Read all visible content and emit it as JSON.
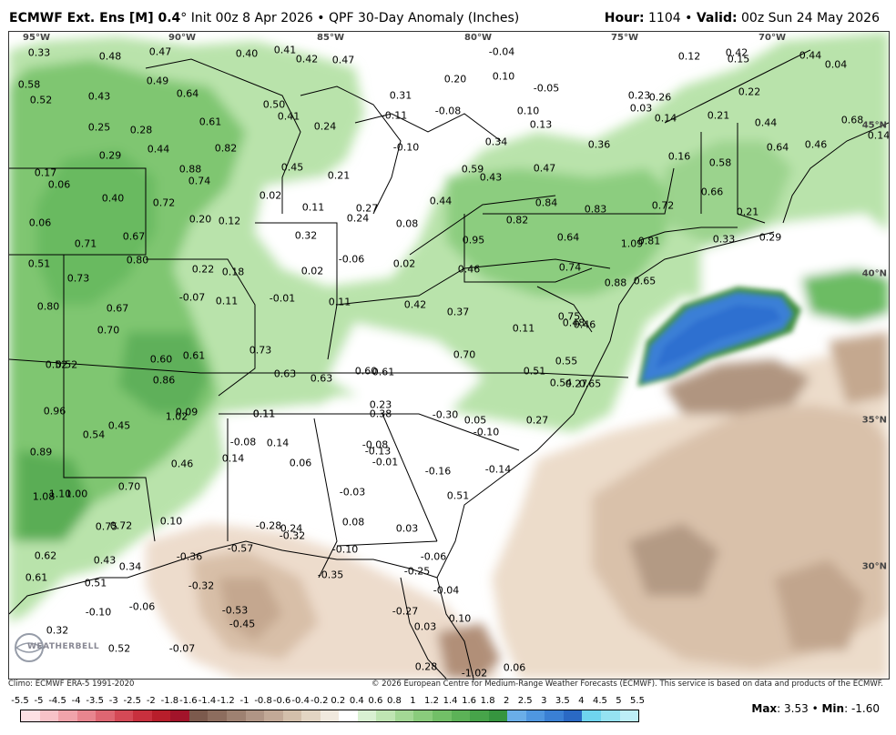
{
  "title": {
    "model": "ECMWF Ext. Ens [M] 0.4",
    "degree": "°",
    "init": "Init 00z 8 Apr 2026",
    "product": "QPF 30-Day Anomaly (Inches)",
    "hour_label": "Hour:",
    "hour": "1104",
    "valid_label": "Valid:",
    "valid": "00z Sun 24 May 2026"
  },
  "longitudes": [
    "95°W",
    "90°W",
    "85°W",
    "80°W",
    "75°W",
    "70°W"
  ],
  "latitudes": [
    "45°N",
    "40°N",
    "35°N",
    "30°N"
  ],
  "anomaly_labels": [
    {
      "text": "0.33"
    },
    {
      "text": "0.48"
    },
    {
      "text": "0.47"
    },
    {
      "text": "0.40"
    },
    {
      "text": "0.41"
    },
    {
      "text": "0.42"
    },
    {
      "text": "0.47"
    },
    {
      "text": "-0.04"
    },
    {
      "text": "0.42"
    },
    {
      "text": "0.44"
    },
    {
      "text": "0.58"
    },
    {
      "text": "0.49"
    },
    {
      "text": "0.10"
    },
    {
      "text": "0.20"
    },
    {
      "text": "0.12"
    },
    {
      "text": "0.15"
    },
    {
      "text": "0.04"
    },
    {
      "text": "0.52"
    },
    {
      "text": "0.43"
    },
    {
      "text": "0.64"
    },
    {
      "text": "-0.05"
    },
    {
      "text": "0.22"
    },
    {
      "text": "0.31"
    },
    {
      "text": "0.23"
    },
    {
      "text": "0.26"
    },
    {
      "text": "0.50"
    },
    {
      "text": "0.41"
    },
    {
      "text": "-0.11"
    },
    {
      "text": "-0.08"
    },
    {
      "text": "0.10"
    },
    {
      "text": "0.03"
    },
    {
      "text": "0.14"
    },
    {
      "text": "0.21"
    },
    {
      "text": "0.68"
    },
    {
      "text": "0.25"
    },
    {
      "text": "0.28"
    },
    {
      "text": "0.61"
    },
    {
      "text": "0.24"
    },
    {
      "text": "0.13"
    },
    {
      "text": "0.44"
    },
    {
      "text": "0.14"
    },
    {
      "text": "0.34"
    },
    {
      "text": "0.36"
    },
    {
      "text": "0.29"
    },
    {
      "text": "0.44"
    },
    {
      "text": "0.82"
    },
    {
      "text": "-0.10"
    },
    {
      "text": "0.64"
    },
    {
      "text": "0.46"
    },
    {
      "text": "0.16"
    },
    {
      "text": "0.58"
    },
    {
      "text": "0.45"
    },
    {
      "text": "0.88"
    },
    {
      "text": "0.47"
    },
    {
      "text": "0.59"
    },
    {
      "text": "0.17"
    },
    {
      "text": "0.21"
    },
    {
      "text": "0.43"
    },
    {
      "text": "0.06"
    },
    {
      "text": "0.74"
    },
    {
      "text": "0.66"
    },
    {
      "text": "0.02"
    },
    {
      "text": "0.40"
    },
    {
      "text": "0.72"
    },
    {
      "text": "0.84"
    },
    {
      "text": "0.72"
    },
    {
      "text": "0.11"
    },
    {
      "text": "0.27"
    },
    {
      "text": "0.44"
    },
    {
      "text": "0.83"
    },
    {
      "text": "0.21"
    },
    {
      "text": "0.20"
    },
    {
      "text": "0.12"
    },
    {
      "text": "0.24"
    },
    {
      "text": "0.08"
    },
    {
      "text": "0.06"
    },
    {
      "text": "0.82"
    },
    {
      "text": "0.67"
    },
    {
      "text": "0.32"
    },
    {
      "text": "0.95"
    },
    {
      "text": "0.64"
    },
    {
      "text": "1.09"
    },
    {
      "text": "0.81"
    },
    {
      "text": "0.33"
    },
    {
      "text": "0.29"
    },
    {
      "text": "0.71"
    },
    {
      "text": "0.51"
    },
    {
      "text": "0.80"
    },
    {
      "text": "-0.06"
    },
    {
      "text": "0.02"
    },
    {
      "text": "0.22"
    },
    {
      "text": "0.18"
    },
    {
      "text": "0.02"
    },
    {
      "text": "0.46"
    },
    {
      "text": "0.74"
    },
    {
      "text": "0.73"
    },
    {
      "text": "0.88"
    },
    {
      "text": "0.65"
    },
    {
      "text": "-0.07"
    },
    {
      "text": "0.11"
    },
    {
      "text": "-0.01"
    },
    {
      "text": "0.11"
    },
    {
      "text": "0.42"
    },
    {
      "text": "0.37"
    },
    {
      "text": "0.80"
    },
    {
      "text": "0.67"
    },
    {
      "text": "0.75"
    },
    {
      "text": "0.11"
    },
    {
      "text": "0.70"
    },
    {
      "text": "0.48"
    },
    {
      "text": "0.46"
    },
    {
      "text": "0.73"
    },
    {
      "text": "0.60"
    },
    {
      "text": "0.61"
    },
    {
      "text": "0.70"
    },
    {
      "text": "0.55"
    },
    {
      "text": "0.52"
    },
    {
      "text": "0.52"
    },
    {
      "text": "0.51"
    },
    {
      "text": "0.86"
    },
    {
      "text": "0.63"
    },
    {
      "text": "0.63"
    },
    {
      "text": "0.60"
    },
    {
      "text": "0.61"
    },
    {
      "text": "0.54"
    },
    {
      "text": "0.27"
    },
    {
      "text": "0.65"
    },
    {
      "text": "0.11"
    },
    {
      "text": "0.23"
    },
    {
      "text": "0.96"
    },
    {
      "text": "1.02"
    },
    {
      "text": "0.09"
    },
    {
      "text": "0.11"
    },
    {
      "text": "0.38"
    },
    {
      "text": "-0.30"
    },
    {
      "text": "0.05"
    },
    {
      "text": "0.27"
    },
    {
      "text": "0.45"
    },
    {
      "text": "0.54"
    },
    {
      "text": "-0.10"
    },
    {
      "text": "-0.08"
    },
    {
      "text": "0.14"
    },
    {
      "text": "-0.08"
    },
    {
      "text": "-0.13"
    },
    {
      "text": "0.89"
    },
    {
      "text": "0.14"
    },
    {
      "text": "-0.01"
    },
    {
      "text": "0.46"
    },
    {
      "text": "0.06"
    },
    {
      "text": "-0.16"
    },
    {
      "text": "-0.14"
    },
    {
      "text": "1.08"
    },
    {
      "text": "1.10"
    },
    {
      "text": "1.00"
    },
    {
      "text": "0.70"
    },
    {
      "text": "-0.03"
    },
    {
      "text": "0.51"
    },
    {
      "text": "0.10"
    },
    {
      "text": "0.08"
    },
    {
      "text": "0.03"
    },
    {
      "text": "0.75"
    },
    {
      "text": "0.72"
    },
    {
      "text": "-0.28"
    },
    {
      "text": "0.24"
    },
    {
      "text": "-0.32"
    },
    {
      "text": "0.62"
    },
    {
      "text": "0.43"
    },
    {
      "text": "-0.36"
    },
    {
      "text": "-0.57"
    },
    {
      "text": "-0.10"
    },
    {
      "text": "-0.06"
    },
    {
      "text": "0.34"
    },
    {
      "text": "0.61"
    },
    {
      "text": "0.51"
    },
    {
      "text": "-0.32"
    },
    {
      "text": "-0.35"
    },
    {
      "text": "-0.25"
    },
    {
      "text": "-0.04"
    },
    {
      "text": "-0.10"
    },
    {
      "text": "-0.06"
    },
    {
      "text": "-0.53"
    },
    {
      "text": "-0.45"
    },
    {
      "text": "-0.27"
    },
    {
      "text": "0.03"
    },
    {
      "text": "0.10"
    },
    {
      "text": "0.32"
    },
    {
      "text": "-0.07"
    },
    {
      "text": "0.52"
    },
    {
      "text": "0.28"
    },
    {
      "text": "-1.02"
    },
    {
      "text": "0.06"
    }
  ],
  "logo_text": "WEATHERBELL",
  "footer": {
    "climo": "Climo: ECMWF ERA-5 1991-2020",
    "copyright": "© 2026 European Centre for Medium-Range Weather Forecasts (ECMWF). This service is based on data and products of the ECMWF."
  },
  "colorbar": {
    "ticks": [
      "-5.5",
      "-5",
      "-4.5",
      "-4",
      "-3.5",
      "-3",
      "-2.5",
      "-2",
      "-1.8",
      "-1.6",
      "-1.4",
      "-1.2",
      "-1",
      "-0.8",
      "-0.6",
      "-0.4",
      "-0.2",
      "0.2",
      "0.4",
      "0.6",
      "0.8",
      "1",
      "1.2",
      "1.4",
      "1.6",
      "1.8",
      "2",
      "2.5",
      "3",
      "3.5",
      "4",
      "4.5",
      "5",
      "5.5"
    ],
    "colors": [
      "#fde0e4",
      "#f7c2c8",
      "#f0a3ab",
      "#e8858f",
      "#de6672",
      "#d44956",
      "#c8303e",
      "#b81e2b",
      "#a2142a",
      "#7c5a4d",
      "#8d6d5e",
      "#9e8171",
      "#b09585",
      "#c2a997",
      "#d3bfab",
      "#e3d5c3",
      "#f1e9de",
      "#ffffff",
      "#d9f0d2",
      "#bfe5b3",
      "#a3d895",
      "#8acc7c",
      "#72bf67",
      "#5cb257",
      "#47a44a",
      "#36953f",
      "#6aaee8",
      "#4f97e0",
      "#3a80d4",
      "#2a69c4",
      "#6fd4ee",
      "#95e2f2",
      "#bdeef7"
    ],
    "value_colors_note": ""
  },
  "stats": {
    "max_label": "Max",
    "max": "3.53",
    "min_label": "Min",
    "min": "-1.60"
  }
}
